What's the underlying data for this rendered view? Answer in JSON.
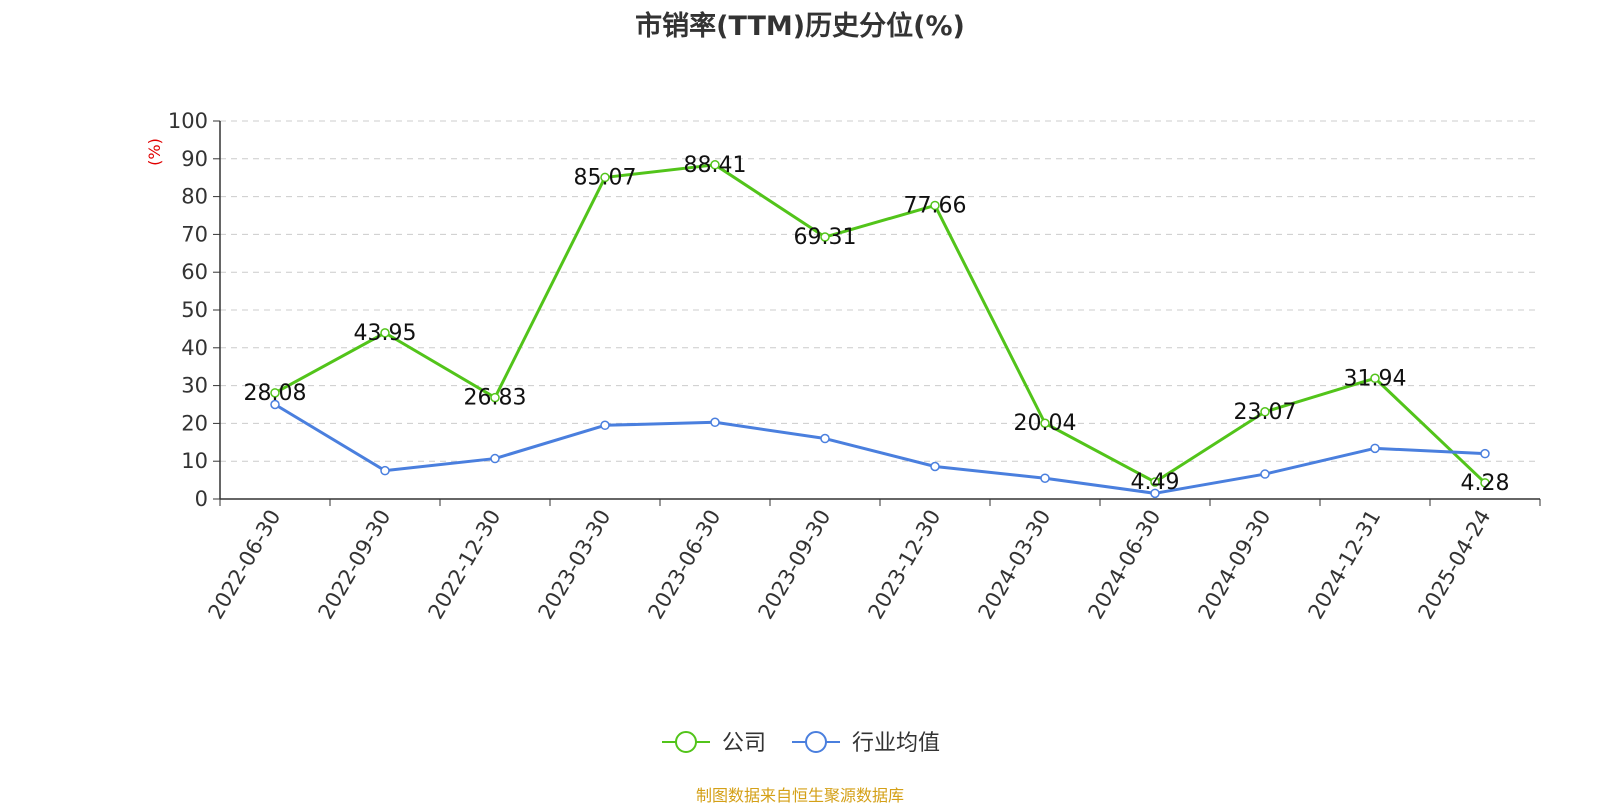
{
  "chart_data": {
    "type": "line",
    "title": "市销率(TTM)历史分位(%)",
    "ylabel": "(%)",
    "xlabel": "",
    "ylim": [
      0,
      100
    ],
    "yticks": [
      0,
      10,
      20,
      30,
      40,
      50,
      60,
      70,
      80,
      90,
      100
    ],
    "grid": true,
    "legend_position": "bottom",
    "categories": [
      "2022-06-30",
      "2022-09-30",
      "2022-12-30",
      "2023-03-30",
      "2023-06-30",
      "2023-09-30",
      "2023-12-30",
      "2024-03-30",
      "2024-06-30",
      "2024-09-30",
      "2024-12-31",
      "2025-04-24"
    ],
    "series": [
      {
        "name": "公司",
        "color": "#52c41a",
        "show_labels": true,
        "values": [
          28.08,
          43.95,
          26.83,
          85.07,
          88.41,
          69.31,
          77.66,
          20.04,
          4.49,
          23.07,
          31.94,
          4.28
        ]
      },
      {
        "name": "行业均值",
        "color": "#4a7fde",
        "show_labels": false,
        "values": [
          25.0,
          7.5,
          10.7,
          19.5,
          20.3,
          16.0,
          8.6,
          5.5,
          1.5,
          6.6,
          13.4,
          12.0
        ]
      }
    ]
  },
  "source_note": "制图数据来自恒生聚源数据库",
  "colors": {
    "ylabel": "#e00000",
    "source_note": "#d4a017",
    "grid": "#cccccc",
    "axis": "#333333"
  }
}
